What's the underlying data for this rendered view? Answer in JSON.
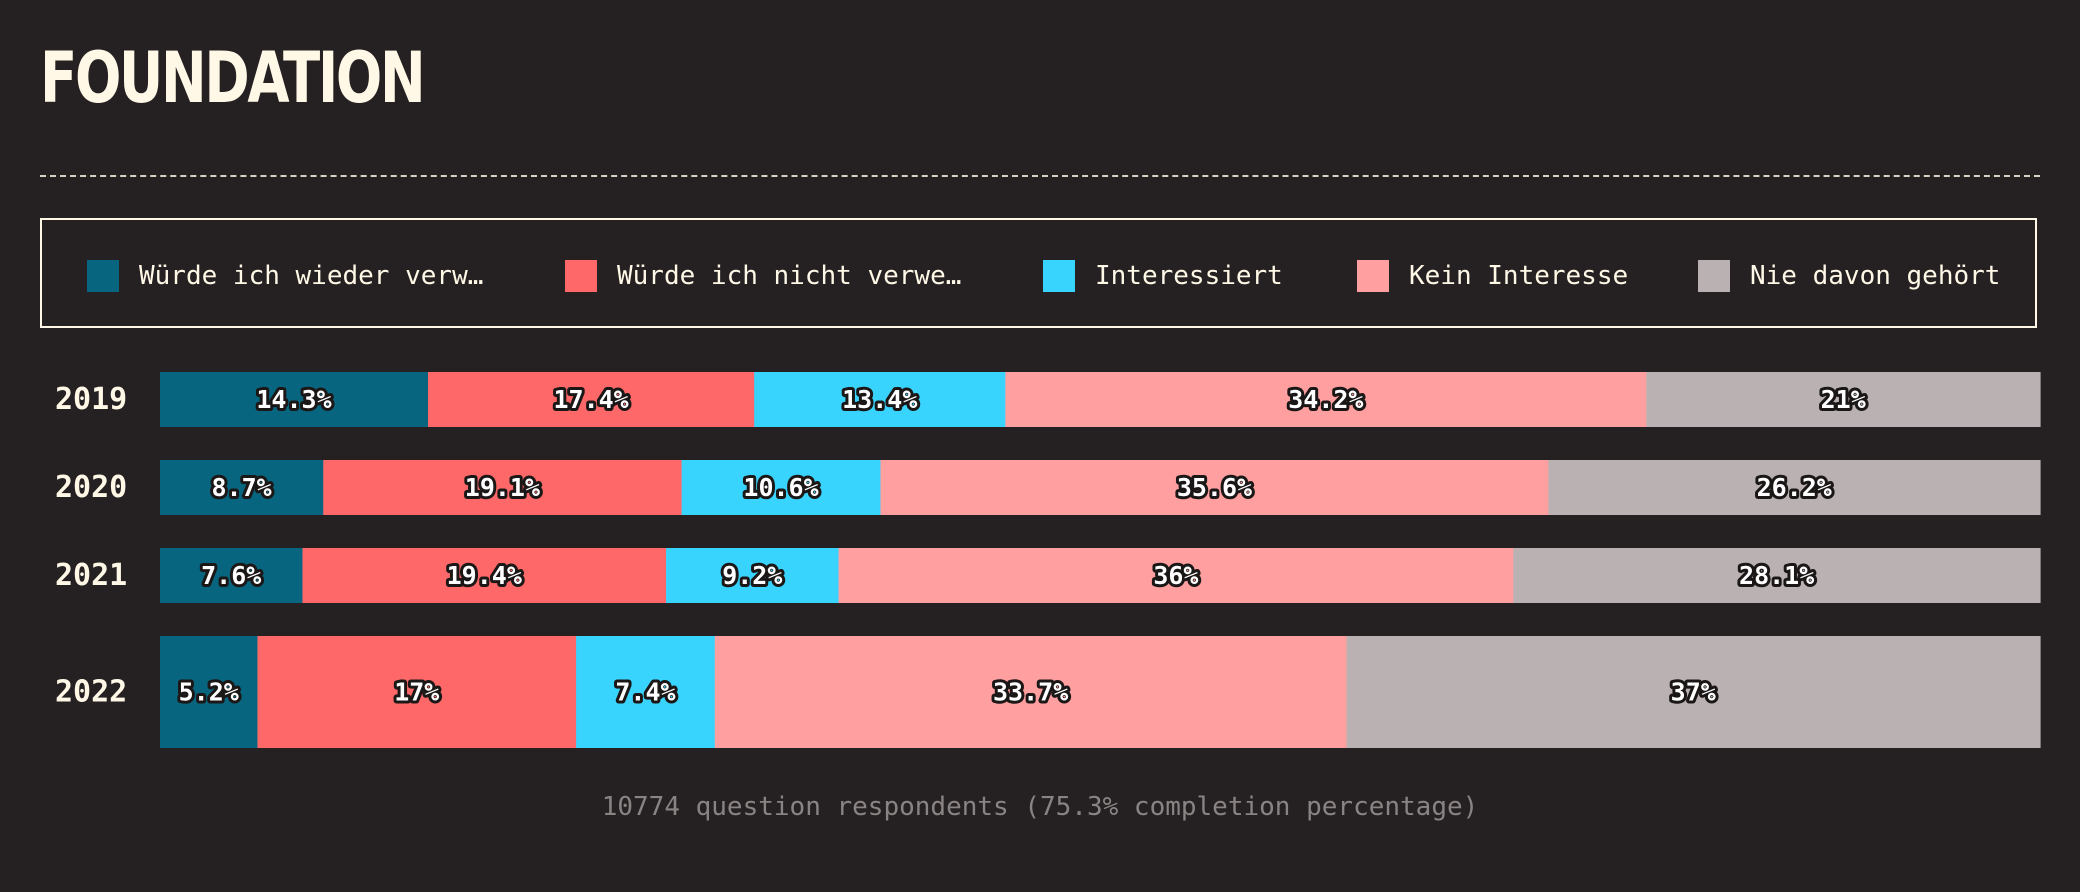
{
  "title": "FOUNDATION",
  "footnote": "10774 question respondents (75.3% completion percentage)",
  "chart_data": {
    "type": "bar",
    "orientation": "horizontal",
    "stacked": true,
    "normalized_percent": true,
    "categories": [
      "2019",
      "2020",
      "2021",
      "2022"
    ],
    "series": [
      {
        "name": "Würde ich wieder verw…",
        "color": "#08657f",
        "values": [
          14.3,
          8.7,
          7.6,
          5.2
        ],
        "labels": [
          "14.3%",
          "8.7%",
          "7.6%",
          "5.2%"
        ]
      },
      {
        "name": "Würde ich nicht verwe…",
        "color": "#ff6869",
        "values": [
          17.4,
          19.1,
          19.4,
          17
        ],
        "labels": [
          "17.4%",
          "19.1%",
          "19.4%",
          "17%"
        ]
      },
      {
        "name": "Interessiert",
        "color": "#39d4fd",
        "values": [
          13.4,
          10.6,
          9.2,
          7.4
        ],
        "labels": [
          "13.4%",
          "10.6%",
          "9.2%",
          "7.4%"
        ]
      },
      {
        "name": "Kein Interesse",
        "color": "#ff9f9f",
        "values": [
          34.2,
          35.6,
          36,
          33.7
        ],
        "labels": [
          "34.2%",
          "35.6%",
          "36%",
          "33.7%"
        ]
      },
      {
        "name": "Nie davon gehört",
        "color": "#bab1b3",
        "values": [
          21,
          26.2,
          28.1,
          37
        ],
        "labels": [
          "21%",
          "26.2%",
          "28.1%",
          "37%"
        ]
      }
    ],
    "legend_position": "top",
    "grid": false
  }
}
